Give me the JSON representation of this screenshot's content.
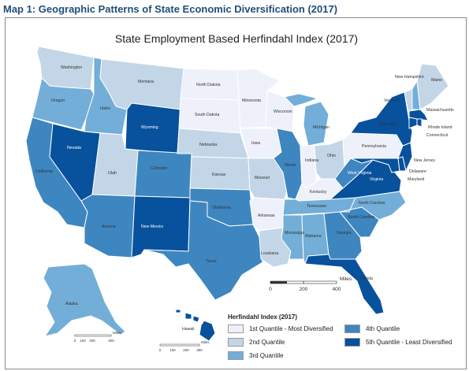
{
  "document": {
    "title": "Map 1: Geographic Patterns of State Economic Diversification (2017)"
  },
  "map": {
    "title": "State Employment Based Herfindahl Index (2017)",
    "colors": {
      "q1": "#eef1f9",
      "q2": "#c2d6e7",
      "q3": "#72aed8",
      "q4": "#3e86c0",
      "q5": "#08519c"
    },
    "states": {
      "WA": {
        "name": "Washington",
        "q": "q2"
      },
      "OR": {
        "name": "Oregon",
        "q": "q3"
      },
      "CA": {
        "name": "California",
        "q": "q4"
      },
      "ID": {
        "name": "Idaho",
        "q": "q3"
      },
      "NV": {
        "name": "Nevada",
        "q": "q5"
      },
      "MT": {
        "name": "Montana",
        "q": "q2"
      },
      "WY": {
        "name": "Wyoming",
        "q": "q5"
      },
      "UT": {
        "name": "Utah",
        "q": "q2"
      },
      "AZ": {
        "name": "Arizona",
        "q": "q4"
      },
      "CO": {
        "name": "Colorado",
        "q": "q4"
      },
      "NM": {
        "name": "New Mexico",
        "q": "q5"
      },
      "ND": {
        "name": "North Dakota",
        "q": "q1"
      },
      "SD": {
        "name": "South Dakota",
        "q": "q1"
      },
      "NE": {
        "name": "Nebraska",
        "q": "q2"
      },
      "KS": {
        "name": "Kansas",
        "q": "q2"
      },
      "OK": {
        "name": "Oklahoma",
        "q": "q4"
      },
      "TX": {
        "name": "Texas",
        "q": "q4"
      },
      "MN": {
        "name": "Minnesota",
        "q": "q1"
      },
      "IA": {
        "name": "Iowa",
        "q": "q1"
      },
      "MO": {
        "name": "Missouri",
        "q": "q2"
      },
      "AR": {
        "name": "Arkansas",
        "q": "q1"
      },
      "LA": {
        "name": "Louisiana",
        "q": "q2"
      },
      "WI": {
        "name": "Wisconsin",
        "q": "q1"
      },
      "IL": {
        "name": "Illinois",
        "q": "q4"
      },
      "MI": {
        "name": "Michigan",
        "q": "q3"
      },
      "IN": {
        "name": "Indiana",
        "q": "q1"
      },
      "OH": {
        "name": "Ohio",
        "q": "q2"
      },
      "KY": {
        "name": "Kentucky",
        "q": "q1"
      },
      "TN": {
        "name": "Tennessee",
        "q": "q3"
      },
      "MS": {
        "name": "Mississippi",
        "q": "q3"
      },
      "AL": {
        "name": "Alabama",
        "q": "q3"
      },
      "GA": {
        "name": "Georgia",
        "q": "q4"
      },
      "FL": {
        "name": "Florida",
        "q": "q5"
      },
      "SC": {
        "name": "South Carolina",
        "q": "q4"
      },
      "NC": {
        "name": "North Carolina",
        "q": "q3"
      },
      "VA": {
        "name": "Virginia",
        "q": "q5"
      },
      "WV": {
        "name": "West Virginia",
        "q": "q4"
      },
      "PA": {
        "name": "Pennsylvania",
        "q": "q1"
      },
      "NY": {
        "name": "New York",
        "q": "q5"
      },
      "VT": {
        "name": "Vermont",
        "q": "q2"
      },
      "NH": {
        "name": "New Hampshire",
        "q": "q3"
      },
      "ME": {
        "name": "Maine",
        "q": "q2"
      },
      "MA": {
        "name": "Massachusetts",
        "q": "q5"
      },
      "RI": {
        "name": "Rhode Island",
        "q": "q5"
      },
      "CT": {
        "name": "Connecticut",
        "q": "q5"
      },
      "NJ": {
        "name": "New Jersey",
        "q": "q5"
      },
      "DE": {
        "name": "Delaware",
        "q": "q5"
      },
      "MD": {
        "name": "Maryland",
        "q": "q5"
      },
      "AK": {
        "name": "Alaska",
        "q": "q3"
      },
      "HI": {
        "name": "Hawaii",
        "q": "q5"
      }
    },
    "scales": {
      "main": {
        "ticks": [
          "0",
          "200",
          "400"
        ],
        "unit": "Miles"
      },
      "alaska": {
        "ticks": [
          "0",
          "100",
          "200",
          "400"
        ],
        "unit": "Miles"
      },
      "hawaii": {
        "ticks": [
          "0",
          "100",
          "200",
          "300"
        ],
        "unit": "Miles"
      }
    }
  },
  "legend": {
    "title": "Herfindahl Index (2017)",
    "items": [
      {
        "key": "q1",
        "label": "1st Quantile - Most Diversified"
      },
      {
        "key": "q2",
        "label": "2nd Quantile"
      },
      {
        "key": "q3",
        "label": "3rd Quantile"
      },
      {
        "key": "q4",
        "label": "4th Quantile"
      },
      {
        "key": "q5",
        "label": "5th Quantile - Least Diversified"
      }
    ]
  }
}
